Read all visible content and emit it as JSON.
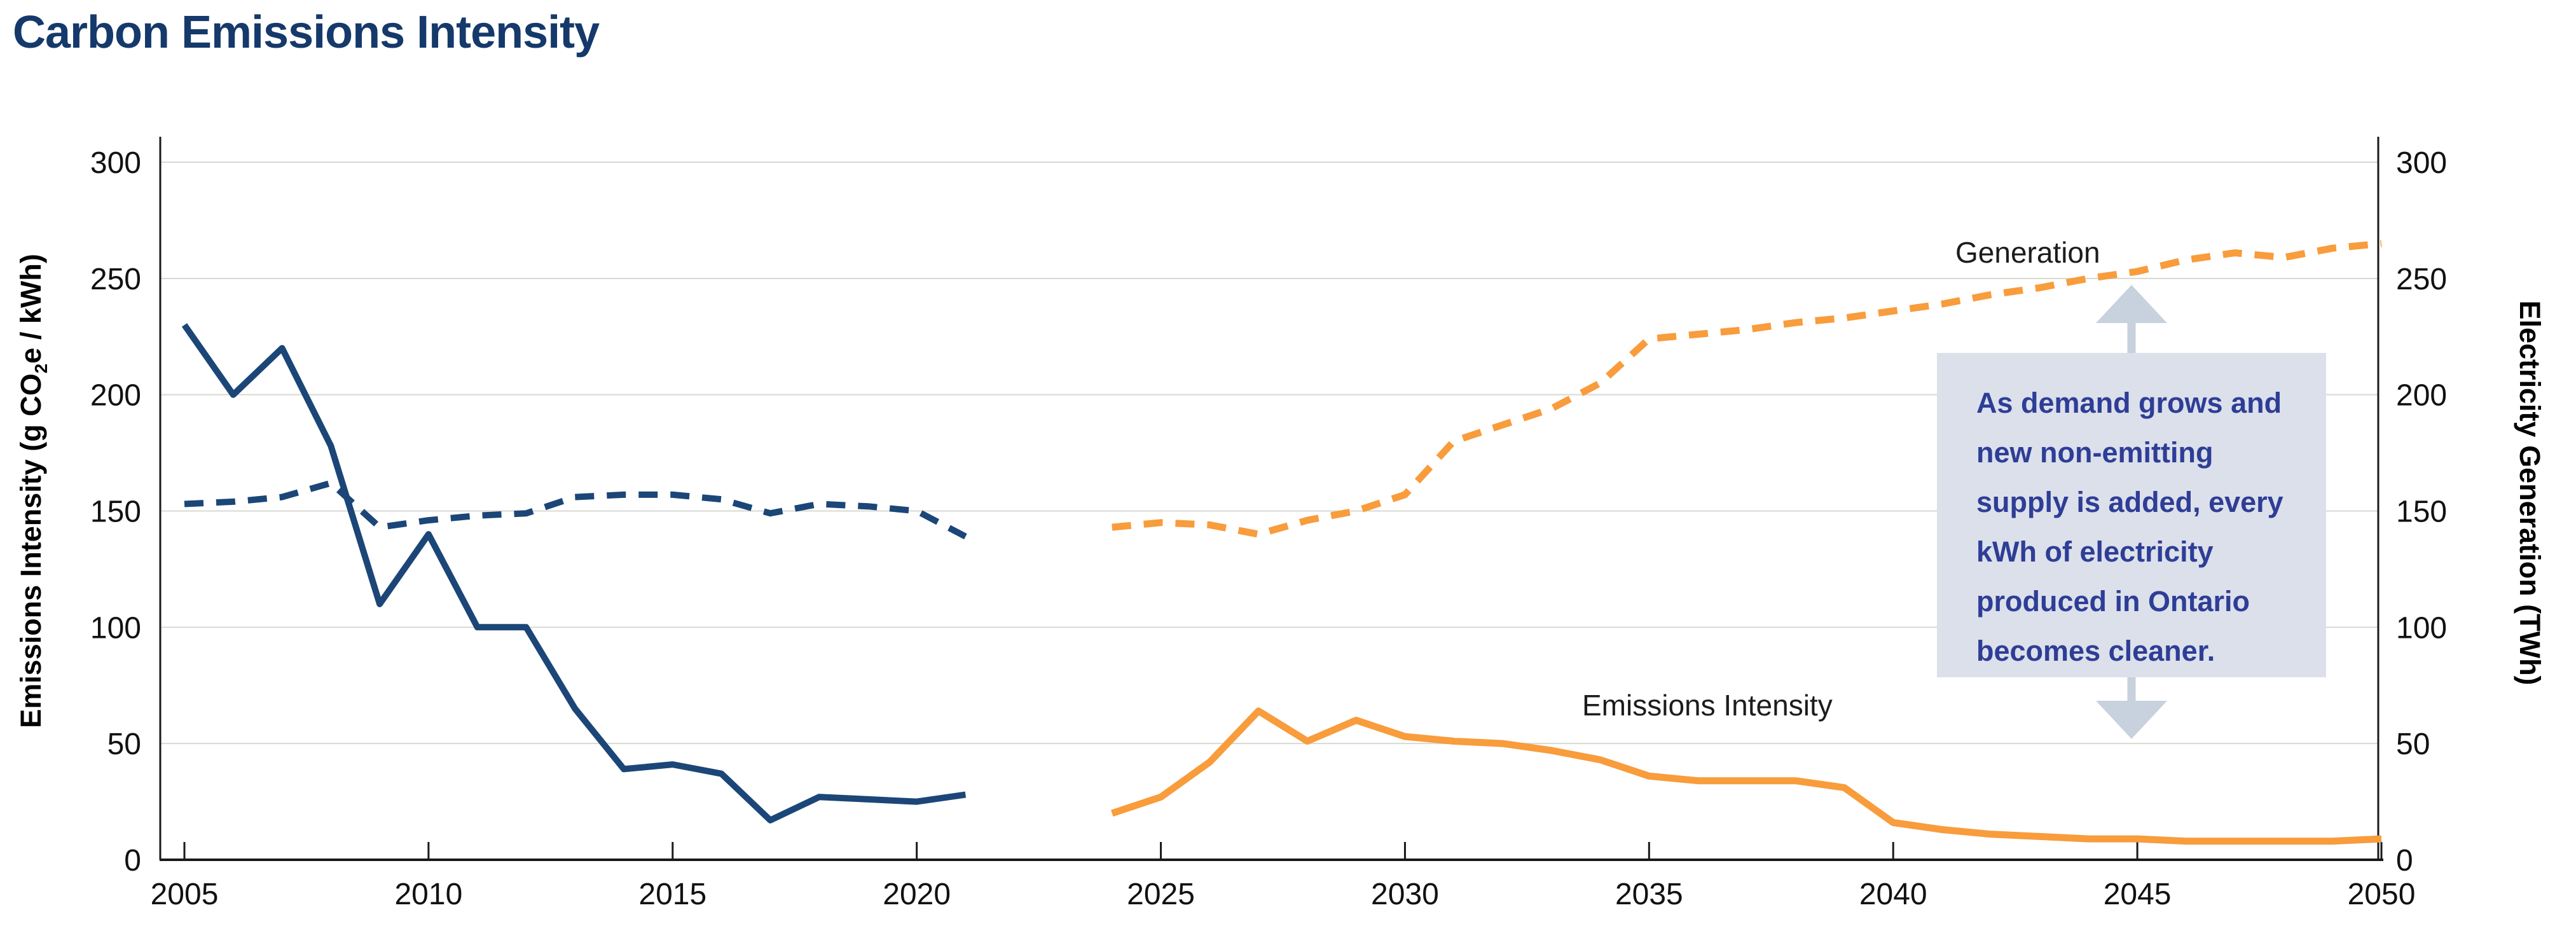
{
  "page": {
    "title": "Carbon Emissions Intensity"
  },
  "colors": {
    "title": "#15396b",
    "navy_line": "#1b4677",
    "orange_line": "#f89c3c",
    "gridline": "#d8d8d3",
    "axis": "#1a1a1a",
    "annotation_box_fill": "#dbe0ea",
    "annotation_text": "#2e3d96",
    "arrow": "#c8d1de",
    "tick_label": "#111111"
  },
  "chart_data": {
    "type": "line",
    "title": "Carbon Emissions Intensity",
    "xlabel": "",
    "y_left_label": {
      "pre": "Emissions Intensity (g CO",
      "sub": "2",
      "post": "e / kWh)"
    },
    "y_right_label": "Electricity Generation (TWh)",
    "xlim": [
      2005,
      2050
    ],
    "ylim_left": [
      0,
      300
    ],
    "ylim_right": [
      0,
      300
    ],
    "x_ticks": [
      2005,
      2010,
      2015,
      2020,
      2025,
      2030,
      2035,
      2040,
      2045,
      2050
    ],
    "y_ticks_left": [
      0,
      50,
      100,
      150,
      200,
      250,
      300
    ],
    "y_ticks_right": [
      0,
      50,
      100,
      150,
      200,
      250,
      300
    ],
    "grid": true,
    "legend_position": "inline-labels",
    "series": [
      {
        "name": "Emissions Intensity (historical)",
        "axis": "left",
        "color_key": "navy_line",
        "dashed": false,
        "x": [
          2005,
          2006,
          2007,
          2008,
          2009,
          2010,
          2011,
          2012,
          2013,
          2014,
          2015,
          2016,
          2017,
          2018,
          2019,
          2020,
          2021
        ],
        "values": [
          230,
          200,
          220,
          178,
          110,
          140,
          100,
          100,
          65,
          39,
          41,
          37,
          17,
          27,
          26,
          25,
          28
        ]
      },
      {
        "name": "Electricity Generation (historical)",
        "axis": "right",
        "color_key": "navy_line",
        "dashed": true,
        "x": [
          2005,
          2006,
          2007,
          2008,
          2009,
          2010,
          2011,
          2012,
          2013,
          2014,
          2015,
          2016,
          2017,
          2018,
          2019,
          2020,
          2021
        ],
        "values": [
          153,
          154,
          156,
          162,
          143,
          146,
          148,
          149,
          156,
          157,
          157,
          155,
          149,
          153,
          152,
          150,
          139
        ]
      },
      {
        "name": "Electricity Generation (projected)",
        "axis": "right",
        "color_key": "orange_line",
        "dashed": true,
        "x": [
          2024,
          2025,
          2026,
          2027,
          2028,
          2029,
          2030,
          2031,
          2032,
          2033,
          2034,
          2035,
          2036,
          2037,
          2038,
          2039,
          2040,
          2041,
          2042,
          2043,
          2044,
          2045,
          2046,
          2047,
          2048,
          2049,
          2050
        ],
        "values": [
          143,
          145,
          144,
          140,
          146,
          150,
          157,
          180,
          187,
          194,
          205,
          224,
          226,
          228,
          231,
          233,
          236,
          239,
          243,
          246,
          250,
          253,
          258,
          261,
          259,
          263,
          265
        ]
      },
      {
        "name": "Emissions Intensity (projected)",
        "axis": "left",
        "color_key": "orange_line",
        "dashed": false,
        "x": [
          2024,
          2025,
          2026,
          2027,
          2028,
          2029,
          2030,
          2031,
          2032,
          2033,
          2034,
          2035,
          2036,
          2037,
          2038,
          2039,
          2040,
          2041,
          2042,
          2043,
          2044,
          2045,
          2046,
          2047,
          2048,
          2049,
          2050
        ],
        "values": [
          20,
          27,
          42,
          64,
          51,
          60,
          53,
          51,
          50,
          47,
          43,
          36,
          34,
          34,
          34,
          31,
          16,
          13,
          11,
          10,
          9,
          9,
          8,
          8,
          8,
          8,
          9
        ]
      }
    ],
    "series_labels": [
      {
        "text": "Generation"
      },
      {
        "text": "Emissions Intensity"
      }
    ],
    "annotation": {
      "text": "As demand grows and\nnew non-emitting\nsupply is added, every\nkWh of electricity\nproduced in Ontario\nbecomes cleaner."
    }
  }
}
